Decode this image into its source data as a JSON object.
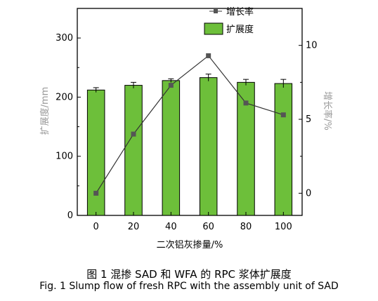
{
  "chart_data": {
    "type": "bar",
    "x_ticks": [
      "0",
      "20",
      "40",
      "60",
      "80",
      "100"
    ],
    "xlabel": "二次铝灰掺量/%",
    "ylabel_left": "扩展度/mm",
    "ylabel_right": "增长率/%",
    "left_ticks": [
      "0",
      "100",
      "200",
      "300"
    ],
    "right_ticks": [
      "0",
      "5",
      "10"
    ],
    "ylim_left": [
      0,
      350
    ],
    "ylim_right": [
      -1.5,
      12.5
    ],
    "grid": false,
    "legend_position": "top-right",
    "series": [
      {
        "name": "扩展度",
        "type": "bar",
        "axis": "left",
        "color": "#6dbf3a",
        "values": [
          212,
          220,
          228,
          233,
          225,
          223
        ],
        "errors": [
          4,
          5,
          3,
          6,
          5,
          7
        ]
      },
      {
        "name": "增长率",
        "type": "line",
        "axis": "right",
        "color": "#333333",
        "values": [
          0,
          4,
          7.3,
          9.3,
          6.1,
          5.3
        ]
      }
    ]
  },
  "caption": {
    "line1": "图 1   混掺 SAD 和 WFA 的 RPC 浆体扩展度",
    "line2": "Fig. 1   Slump flow of fresh RPC with the assembly unit of SAD"
  }
}
